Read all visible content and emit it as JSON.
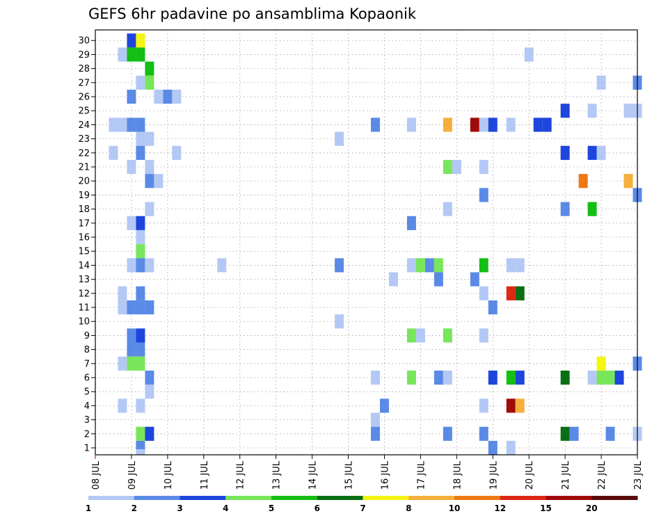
{
  "chart_data": {
    "type": "heatmap",
    "title": "GEFS 6hr padavine po ansamblima Kopaonik",
    "xlabel": "",
    "ylabel": "",
    "x_tick_labels": [
      "08 JUL",
      "09 JUL",
      "10 JUL",
      "11 JUL",
      "12 JUL",
      "13 JUL",
      "14 JUL",
      "15 JUL",
      "16 JUL",
      "17 JUL",
      "18 JUL",
      "19 JUL",
      "20 JUL",
      "21 JUL",
      "22 JUL",
      "23 JUL"
    ],
    "xlim_days": [
      0,
      15
    ],
    "y_tick_labels": [
      "1",
      "2",
      "3",
      "4",
      "5",
      "6",
      "7",
      "8",
      "9",
      "10",
      "11",
      "12",
      "13",
      "14",
      "15",
      "16",
      "17",
      "18",
      "19",
      "20",
      "21",
      "22",
      "23",
      "24",
      "25",
      "26",
      "27",
      "28",
      "29",
      "30"
    ],
    "ylim": [
      0,
      30
    ],
    "grid": true,
    "colorbar": {
      "labels": [
        "1",
        "2",
        "3",
        "4",
        "5",
        "6",
        "7",
        "8",
        "10",
        "12",
        "15",
        "20"
      ],
      "colors": [
        "#b4c8f5",
        "#5a8ae6",
        "#1e46dc",
        "#78e65a",
        "#14be14",
        "#0a6e14",
        "#f5f514",
        "#f5af3c",
        "#ed7814",
        "#dc2814",
        "#a00a0a",
        "#5a0a0a"
      ]
    },
    "cells": [
      {
        "member": 30,
        "day": 1.0,
        "bin": 3
      },
      {
        "member": 30,
        "day": 1.25,
        "bin": 7
      },
      {
        "member": 29,
        "day": 0.75,
        "bin": 1
      },
      {
        "member": 29,
        "day": 1.0,
        "bin": 5
      },
      {
        "member": 29,
        "day": 1.25,
        "bin": 5
      },
      {
        "member": 29,
        "day": 12.0,
        "bin": 1
      },
      {
        "member": 28,
        "day": 1.5,
        "bin": 5
      },
      {
        "member": 27,
        "day": 1.25,
        "bin": 1
      },
      {
        "member": 27,
        "day": 1.5,
        "bin": 4
      },
      {
        "member": 27,
        "day": 14.0,
        "bin": 1
      },
      {
        "member": 27,
        "day": 15.0,
        "bin": 2
      },
      {
        "member": 26,
        "day": 1.0,
        "bin": 2
      },
      {
        "member": 26,
        "day": 1.75,
        "bin": 1
      },
      {
        "member": 26,
        "day": 2.0,
        "bin": 2
      },
      {
        "member": 26,
        "day": 2.25,
        "bin": 1
      },
      {
        "member": 25,
        "day": 13.0,
        "bin": 3
      },
      {
        "member": 25,
        "day": 13.75,
        "bin": 1
      },
      {
        "member": 25,
        "day": 14.75,
        "bin": 1
      },
      {
        "member": 25,
        "day": 15.0,
        "bin": 1
      },
      {
        "member": 24,
        "day": 0.5,
        "bin": 1
      },
      {
        "member": 24,
        "day": 0.75,
        "bin": 1
      },
      {
        "member": 24,
        "day": 1.0,
        "bin": 2
      },
      {
        "member": 24,
        "day": 1.25,
        "bin": 2
      },
      {
        "member": 24,
        "day": 7.75,
        "bin": 2
      },
      {
        "member": 24,
        "day": 8.75,
        "bin": 1
      },
      {
        "member": 24,
        "day": 9.75,
        "bin": 8
      },
      {
        "member": 24,
        "day": 10.5,
        "bin": 11
      },
      {
        "member": 24,
        "day": 10.75,
        "bin": 1
      },
      {
        "member": 24,
        "day": 11.0,
        "bin": 3
      },
      {
        "member": 24,
        "day": 11.5,
        "bin": 1
      },
      {
        "member": 24,
        "day": 12.25,
        "bin": 3
      },
      {
        "member": 24,
        "day": 12.5,
        "bin": 3
      },
      {
        "member": 23,
        "day": 1.25,
        "bin": 1
      },
      {
        "member": 23,
        "day": 1.5,
        "bin": 1
      },
      {
        "member": 23,
        "day": 6.75,
        "bin": 1
      },
      {
        "member": 22,
        "day": 0.5,
        "bin": 1
      },
      {
        "member": 22,
        "day": 1.25,
        "bin": 2
      },
      {
        "member": 22,
        "day": 2.25,
        "bin": 1
      },
      {
        "member": 22,
        "day": 13.0,
        "bin": 3
      },
      {
        "member": 22,
        "day": 13.75,
        "bin": 3
      },
      {
        "member": 22,
        "day": 14.0,
        "bin": 1
      },
      {
        "member": 21,
        "day": 1.0,
        "bin": 1
      },
      {
        "member": 21,
        "day": 1.5,
        "bin": 1
      },
      {
        "member": 21,
        "day": 9.75,
        "bin": 4
      },
      {
        "member": 21,
        "day": 10.0,
        "bin": 1
      },
      {
        "member": 21,
        "day": 10.75,
        "bin": 1
      },
      {
        "member": 20,
        "day": 1.5,
        "bin": 2
      },
      {
        "member": 20,
        "day": 1.75,
        "bin": 1
      },
      {
        "member": 20,
        "day": 13.5,
        "bin": 9
      },
      {
        "member": 20,
        "day": 14.75,
        "bin": 8
      },
      {
        "member": 19,
        "day": 10.75,
        "bin": 2
      },
      {
        "member": 19,
        "day": 15.0,
        "bin": 2
      },
      {
        "member": 18,
        "day": 1.5,
        "bin": 1
      },
      {
        "member": 18,
        "day": 9.75,
        "bin": 1
      },
      {
        "member": 18,
        "day": 13.0,
        "bin": 2
      },
      {
        "member": 18,
        "day": 13.75,
        "bin": 5
      },
      {
        "member": 17,
        "day": 1.0,
        "bin": 1
      },
      {
        "member": 17,
        "day": 1.25,
        "bin": 3
      },
      {
        "member": 17,
        "day": 8.75,
        "bin": 2
      },
      {
        "member": 16,
        "day": 1.25,
        "bin": 1
      },
      {
        "member": 15,
        "day": 1.25,
        "bin": 4
      },
      {
        "member": 14,
        "day": 1.0,
        "bin": 1
      },
      {
        "member": 14,
        "day": 1.25,
        "bin": 2
      },
      {
        "member": 14,
        "day": 1.5,
        "bin": 1
      },
      {
        "member": 14,
        "day": 3.5,
        "bin": 1
      },
      {
        "member": 14,
        "day": 6.75,
        "bin": 2
      },
      {
        "member": 14,
        "day": 8.75,
        "bin": 1
      },
      {
        "member": 14,
        "day": 9.0,
        "bin": 4
      },
      {
        "member": 14,
        "day": 9.25,
        "bin": 2
      },
      {
        "member": 14,
        "day": 9.5,
        "bin": 4
      },
      {
        "member": 14,
        "day": 10.75,
        "bin": 5
      },
      {
        "member": 14,
        "day": 11.5,
        "bin": 1
      },
      {
        "member": 14,
        "day": 11.75,
        "bin": 1
      },
      {
        "member": 13,
        "day": 8.25,
        "bin": 1
      },
      {
        "member": 13,
        "day": 9.5,
        "bin": 2
      },
      {
        "member": 13,
        "day": 10.5,
        "bin": 2
      },
      {
        "member": 12,
        "day": 0.75,
        "bin": 1
      },
      {
        "member": 12,
        "day": 1.25,
        "bin": 2
      },
      {
        "member": 12,
        "day": 10.75,
        "bin": 1
      },
      {
        "member": 12,
        "day": 11.5,
        "bin": 10
      },
      {
        "member": 12,
        "day": 11.75,
        "bin": 6
      },
      {
        "member": 11,
        "day": 0.75,
        "bin": 1
      },
      {
        "member": 11,
        "day": 1.0,
        "bin": 2
      },
      {
        "member": 11,
        "day": 1.25,
        "bin": 2
      },
      {
        "member": 11,
        "day": 1.5,
        "bin": 2
      },
      {
        "member": 11,
        "day": 11.0,
        "bin": 2
      },
      {
        "member": 10,
        "day": 6.75,
        "bin": 1
      },
      {
        "member": 9,
        "day": 1.0,
        "bin": 2
      },
      {
        "member": 9,
        "day": 1.25,
        "bin": 3
      },
      {
        "member": 9,
        "day": 8.75,
        "bin": 4
      },
      {
        "member": 9,
        "day": 9.0,
        "bin": 1
      },
      {
        "member": 9,
        "day": 9.75,
        "bin": 4
      },
      {
        "member": 9,
        "day": 10.75,
        "bin": 1
      },
      {
        "member": 8,
        "day": 1.0,
        "bin": 2
      },
      {
        "member": 8,
        "day": 1.25,
        "bin": 2
      },
      {
        "member": 7,
        "day": 0.75,
        "bin": 1
      },
      {
        "member": 7,
        "day": 1.0,
        "bin": 4
      },
      {
        "member": 7,
        "day": 1.25,
        "bin": 4
      },
      {
        "member": 7,
        "day": 14.0,
        "bin": 7
      },
      {
        "member": 7,
        "day": 15.0,
        "bin": 2
      },
      {
        "member": 6,
        "day": 1.5,
        "bin": 2
      },
      {
        "member": 6,
        "day": 7.75,
        "bin": 1
      },
      {
        "member": 6,
        "day": 8.75,
        "bin": 4
      },
      {
        "member": 6,
        "day": 9.5,
        "bin": 2
      },
      {
        "member": 6,
        "day": 9.75,
        "bin": 1
      },
      {
        "member": 6,
        "day": 11.0,
        "bin": 3
      },
      {
        "member": 6,
        "day": 11.5,
        "bin": 5
      },
      {
        "member": 6,
        "day": 11.75,
        "bin": 3
      },
      {
        "member": 6,
        "day": 13.0,
        "bin": 6
      },
      {
        "member": 6,
        "day": 13.75,
        "bin": 1
      },
      {
        "member": 6,
        "day": 14.0,
        "bin": 4
      },
      {
        "member": 6,
        "day": 14.25,
        "bin": 4
      },
      {
        "member": 6,
        "day": 14.5,
        "bin": 3
      },
      {
        "member": 5,
        "day": 1.5,
        "bin": 1
      },
      {
        "member": 4,
        "day": 0.75,
        "bin": 1
      },
      {
        "member": 4,
        "day": 1.25,
        "bin": 1
      },
      {
        "member": 4,
        "day": 8.0,
        "bin": 2
      },
      {
        "member": 4,
        "day": 10.75,
        "bin": 1
      },
      {
        "member": 4,
        "day": 11.5,
        "bin": 11
      },
      {
        "member": 4,
        "day": 11.75,
        "bin": 8
      },
      {
        "member": 3,
        "day": 7.75,
        "bin": 1
      },
      {
        "member": 2,
        "day": 1.25,
        "bin": 4
      },
      {
        "member": 2,
        "day": 1.5,
        "bin": 3
      },
      {
        "member": 2,
        "day": 7.75,
        "bin": 2
      },
      {
        "member": 2,
        "day": 9.75,
        "bin": 2
      },
      {
        "member": 2,
        "day": 10.75,
        "bin": 2
      },
      {
        "member": 2,
        "day": 13.0,
        "bin": 6
      },
      {
        "member": 2,
        "day": 13.25,
        "bin": 2
      },
      {
        "member": 2,
        "day": 14.25,
        "bin": 2
      },
      {
        "member": 2,
        "day": 15.0,
        "bin": 1
      },
      {
        "member": 1,
        "day": 1.25,
        "bin": 2
      },
      {
        "member": 1,
        "day": 11.0,
        "bin": 2
      },
      {
        "member": 1,
        "day": 11.5,
        "bin": 1
      },
      {
        "member": 0,
        "day": 1.25,
        "bin": 1
      }
    ]
  }
}
